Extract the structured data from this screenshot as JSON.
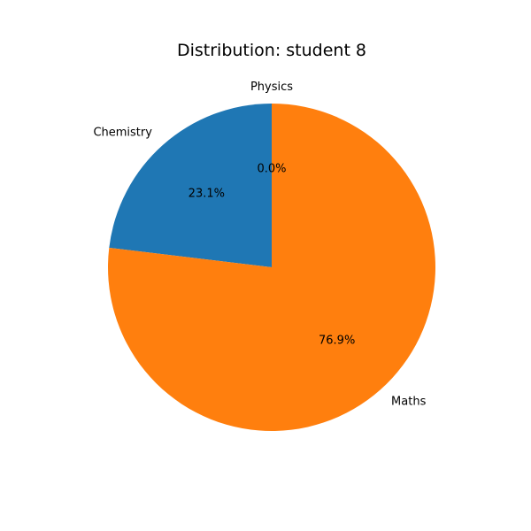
{
  "chart_data": {
    "type": "pie",
    "title": "Distribution: student 8",
    "slices": [
      {
        "label": "Physics",
        "value": 0.0,
        "pct_label": "0.0%",
        "color": "#2ca02c"
      },
      {
        "label": "Chemistry",
        "value": 23.1,
        "pct_label": "23.1%",
        "color": "#1f77b4"
      },
      {
        "label": "Maths",
        "value": 76.9,
        "pct_label": "76.9%",
        "color": "#ff7f0e"
      }
    ],
    "start_angle_deg": 90,
    "direction": "counterclockwise",
    "legend": "none"
  }
}
